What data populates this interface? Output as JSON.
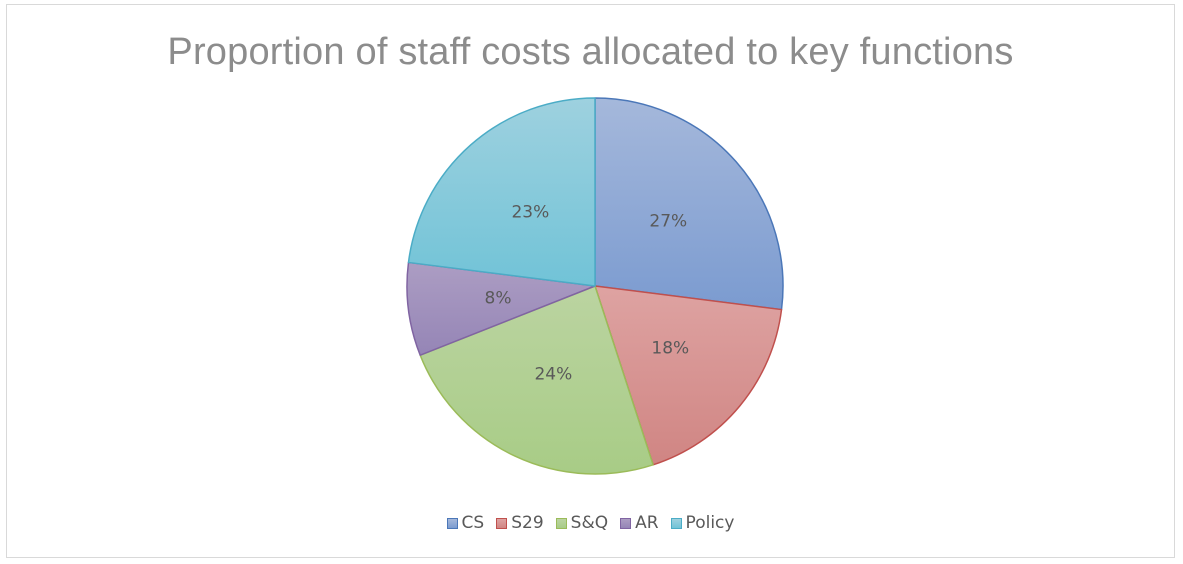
{
  "chart_data": {
    "type": "pie",
    "title": "Proportion of staff costs allocated to key functions",
    "categories": [
      "CS",
      "S29",
      "S&Q",
      "AR",
      "Policy"
    ],
    "values": [
      27,
      18,
      24,
      8,
      23
    ],
    "labels": [
      "27%",
      "18%",
      "24%",
      "8%",
      "23%"
    ],
    "colors": {
      "fill_light": [
        "#a5b8db",
        "#dea3a2",
        "#bbd4a1",
        "#ac9dc3",
        "#9ed1df"
      ],
      "fill_dark": [
        "#7b9bd0",
        "#d08583",
        "#a8cc86",
        "#9585b6",
        "#71c3d7"
      ],
      "stroke": [
        "#4b77b8",
        "#c0504d",
        "#9bbb59",
        "#8064a2",
        "#4bacc6"
      ]
    },
    "legend_position": "bottom"
  }
}
